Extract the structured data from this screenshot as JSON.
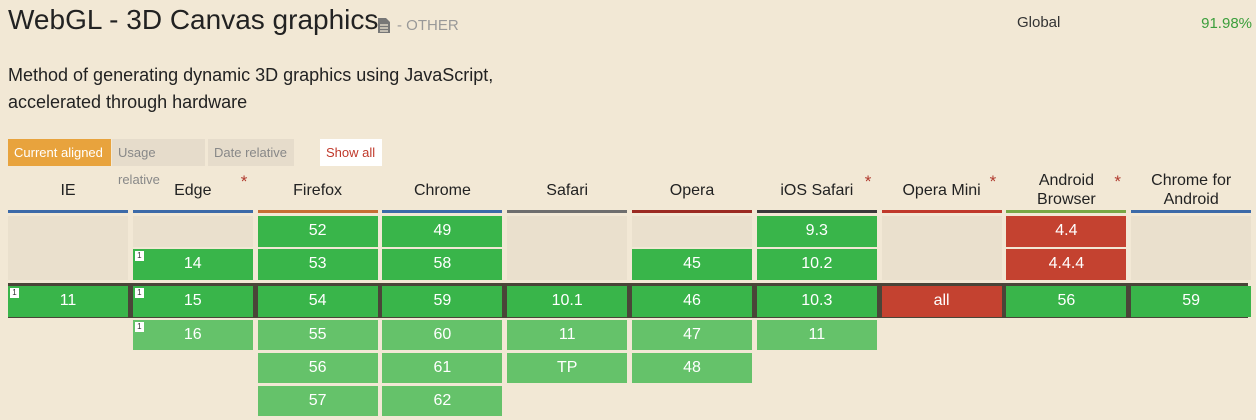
{
  "header": {
    "title": "WebGL - 3D Canvas graphics",
    "status": "- OTHER",
    "scope": "Global",
    "usage": "91.98%"
  },
  "description": "Method of generating dynamic 3D graphics using JavaScript, accelerated through hardware",
  "tabs": [
    "Current aligned",
    "Usage relative",
    "Date relative"
  ],
  "show_all": "Show all",
  "browsers": [
    {
      "name": "IE",
      "color": "#3c6aa8",
      "past": [],
      "current": {
        "version": "11",
        "support": "y",
        "note": "1"
      },
      "future": []
    },
    {
      "name": "Edge",
      "note_mark": "*",
      "color": "#3c6aa8",
      "past": [
        {
          "version": "14",
          "support": "y",
          "note": "1"
        }
      ],
      "current": {
        "version": "15",
        "support": "y",
        "note": "1"
      },
      "future": [
        {
          "version": "16",
          "support": "y",
          "note": "1"
        }
      ]
    },
    {
      "name": "Firefox",
      "color": "#c66e34",
      "past": [
        {
          "version": "52",
          "support": "y"
        },
        {
          "version": "53",
          "support": "y"
        }
      ],
      "current": {
        "version": "54",
        "support": "y"
      },
      "future": [
        {
          "version": "55",
          "support": "y"
        },
        {
          "version": "56",
          "support": "y"
        },
        {
          "version": "57",
          "support": "y"
        }
      ]
    },
    {
      "name": "Chrome",
      "color": "#3c6aa8",
      "past": [
        {
          "version": "49",
          "support": "y"
        },
        {
          "version": "58",
          "support": "y"
        }
      ],
      "current": {
        "version": "59",
        "support": "y"
      },
      "future": [
        {
          "version": "60",
          "support": "y"
        },
        {
          "version": "61",
          "support": "y"
        },
        {
          "version": "62",
          "support": "y"
        }
      ]
    },
    {
      "name": "Safari",
      "color": "#6e6e6e",
      "past": [],
      "current": {
        "version": "10.1",
        "support": "y"
      },
      "future": [
        {
          "version": "11",
          "support": "y"
        },
        {
          "version": "TP",
          "support": "y"
        }
      ]
    },
    {
      "name": "Opera",
      "color": "#9b2a22",
      "past": [
        {
          "version": "45",
          "support": "y"
        }
      ],
      "current": {
        "version": "46",
        "support": "y"
      },
      "future": [
        {
          "version": "47",
          "support": "y"
        },
        {
          "version": "48",
          "support": "y"
        }
      ]
    },
    {
      "name": "iOS Safari",
      "note_mark": "*",
      "color": "#3a3a3a",
      "past": [
        {
          "version": "9.3",
          "support": "y"
        },
        {
          "version": "10.2",
          "support": "y"
        }
      ],
      "current": {
        "version": "10.3",
        "support": "y"
      },
      "future": [
        {
          "version": "11",
          "support": "y"
        }
      ]
    },
    {
      "name": "Opera Mini",
      "note_mark": "*",
      "color": "#c0392b",
      "past": [],
      "current": {
        "version": "all",
        "support": "n"
      },
      "future": []
    },
    {
      "name": "Android Browser",
      "note_mark": "*",
      "color": "#78a845",
      "past": [
        {
          "version": "4.4",
          "support": "n"
        },
        {
          "version": "4.4.4",
          "support": "n"
        }
      ],
      "current": {
        "version": "56",
        "support": "y"
      },
      "future": []
    },
    {
      "name": "Chrome for Android",
      "color": "#3c6aa8",
      "past": [],
      "current": {
        "version": "59",
        "support": "y"
      },
      "future": []
    }
  ]
}
